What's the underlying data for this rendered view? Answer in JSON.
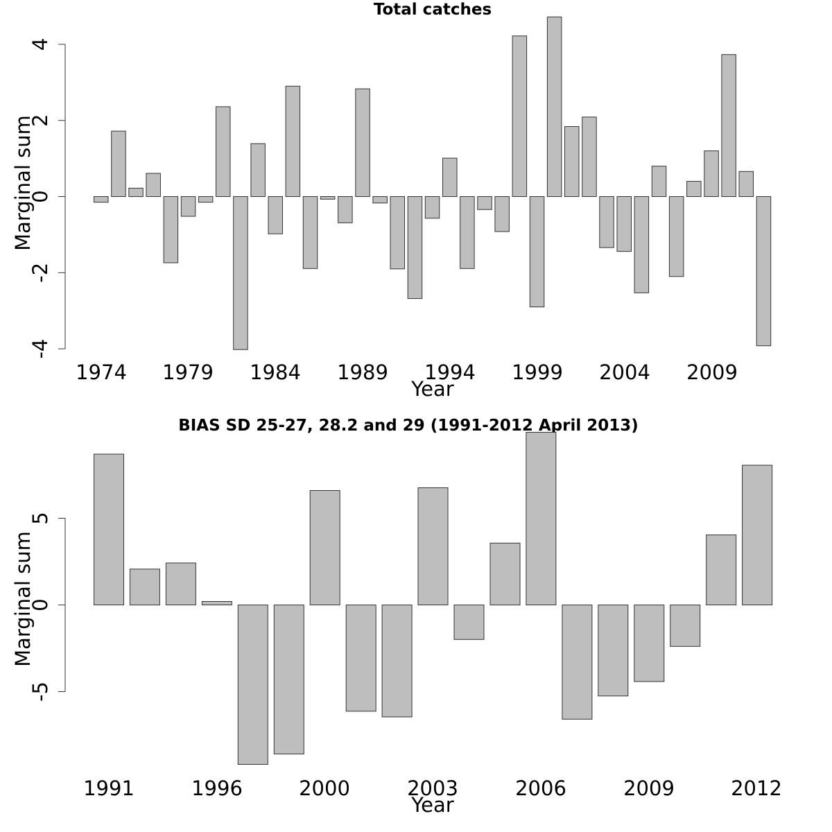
{
  "chart_data": [
    {
      "type": "bar",
      "title": "Total catches",
      "xlabel": "Year",
      "ylabel": "Marginal sum",
      "ylim": [
        -4,
        4.7
      ],
      "yticks": [
        "-4",
        "-2",
        "0",
        "2",
        "4"
      ],
      "xtick_labels": [
        "1974",
        "1979",
        "1984",
        "1989",
        "1994",
        "1999",
        "2004",
        "2009"
      ],
      "categories": [
        "1974",
        "1975",
        "1976",
        "1977",
        "1978",
        "1979",
        "1980",
        "1981",
        "1982",
        "1983",
        "1984",
        "1985",
        "1986",
        "1987",
        "1988",
        "1989",
        "1990",
        "1991",
        "1992",
        "1993",
        "1994",
        "1995",
        "1996",
        "1997",
        "1998",
        "1999",
        "2000",
        "2001",
        "2002",
        "2003",
        "2004",
        "2005",
        "2006",
        "2007",
        "2008",
        "2009",
        "2010",
        "2011",
        "2012"
      ],
      "values": [
        -0.15,
        1.72,
        0.22,
        0.61,
        -1.74,
        -0.52,
        -0.15,
        2.36,
        -4.02,
        1.39,
        -0.98,
        2.9,
        -1.89,
        -0.07,
        -0.69,
        2.83,
        -0.17,
        -1.9,
        -2.68,
        -0.57,
        1.01,
        -1.89,
        -0.34,
        -0.92,
        4.22,
        -2.9,
        4.72,
        1.84,
        2.09,
        -1.34,
        -1.44,
        -2.53,
        0.8,
        -2.1,
        0.4,
        1.2,
        3.73,
        0.66,
        -3.92
      ],
      "grid": false,
      "bar_color": "#bebebe"
    },
    {
      "type": "bar",
      "title": "BIAS SD 25-27, 28.2 and 29 (1991-2012 April 2013)",
      "xlabel": "Year",
      "ylabel": "Marginal sum",
      "ylim": [
        -9.2,
        10
      ],
      "yticks": [
        "-5",
        "0",
        "5"
      ],
      "xtick_labels": [
        "1991",
        "1996",
        "2000",
        "2003",
        "2006",
        "2009",
        "2012"
      ],
      "categories": [
        "1991",
        "1992",
        "1993",
        "1996",
        "1997",
        "1999",
        "2000",
        "2001",
        "2002",
        "2003",
        "2004",
        "2005",
        "2006",
        "2007",
        "2008",
        "2009",
        "2010",
        "2011",
        "2012"
      ],
      "values": [
        8.7,
        2.07,
        2.42,
        0.2,
        -9.2,
        -8.6,
        6.6,
        -6.13,
        -6.46,
        6.76,
        -1.99,
        3.57,
        9.96,
        -6.59,
        -5.25,
        -4.42,
        -2.39,
        4.04,
        8.06
      ],
      "grid": false,
      "bar_color": "#bebebe"
    }
  ]
}
